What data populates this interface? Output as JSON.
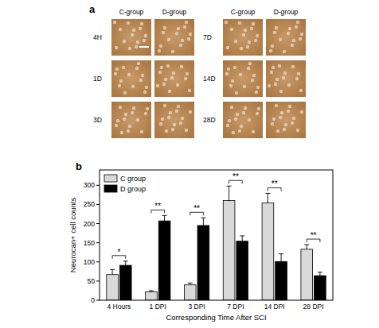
{
  "panel_a": {
    "label": "a",
    "columns": [
      "C-group",
      "D-group"
    ],
    "rows_left": [
      "4H",
      "1D",
      "3D"
    ],
    "rows_right": [
      "7D",
      "14D",
      "28D"
    ]
  },
  "chart_data": {
    "label": "b",
    "type": "bar",
    "categories": [
      "4 Hours",
      "1 DPI",
      "3 DPI",
      "7 DPI",
      "14 DPI",
      "28 DPI"
    ],
    "series": [
      {
        "name": "C group",
        "color": "#d9d9d9",
        "values": [
          67,
          22,
          40,
          260,
          254,
          133
        ],
        "errors": [
          13,
          3,
          5,
          38,
          25,
          12
        ]
      },
      {
        "name": "D group",
        "color": "#000000",
        "values": [
          91,
          207,
          195,
          154,
          101,
          64
        ],
        "errors": [
          11,
          14,
          20,
          14,
          20,
          9
        ]
      }
    ],
    "annotations": [
      "*",
      "**",
      "**",
      "**",
      "**",
      "**"
    ],
    "y_label": "Neurocan+ cell counts",
    "x_label": "Corresponding Time After SCI",
    "ylim": [
      0,
      340
    ],
    "yticks": [
      0,
      50,
      100,
      150,
      200,
      250,
      300
    ],
    "legend": "upper left"
  }
}
